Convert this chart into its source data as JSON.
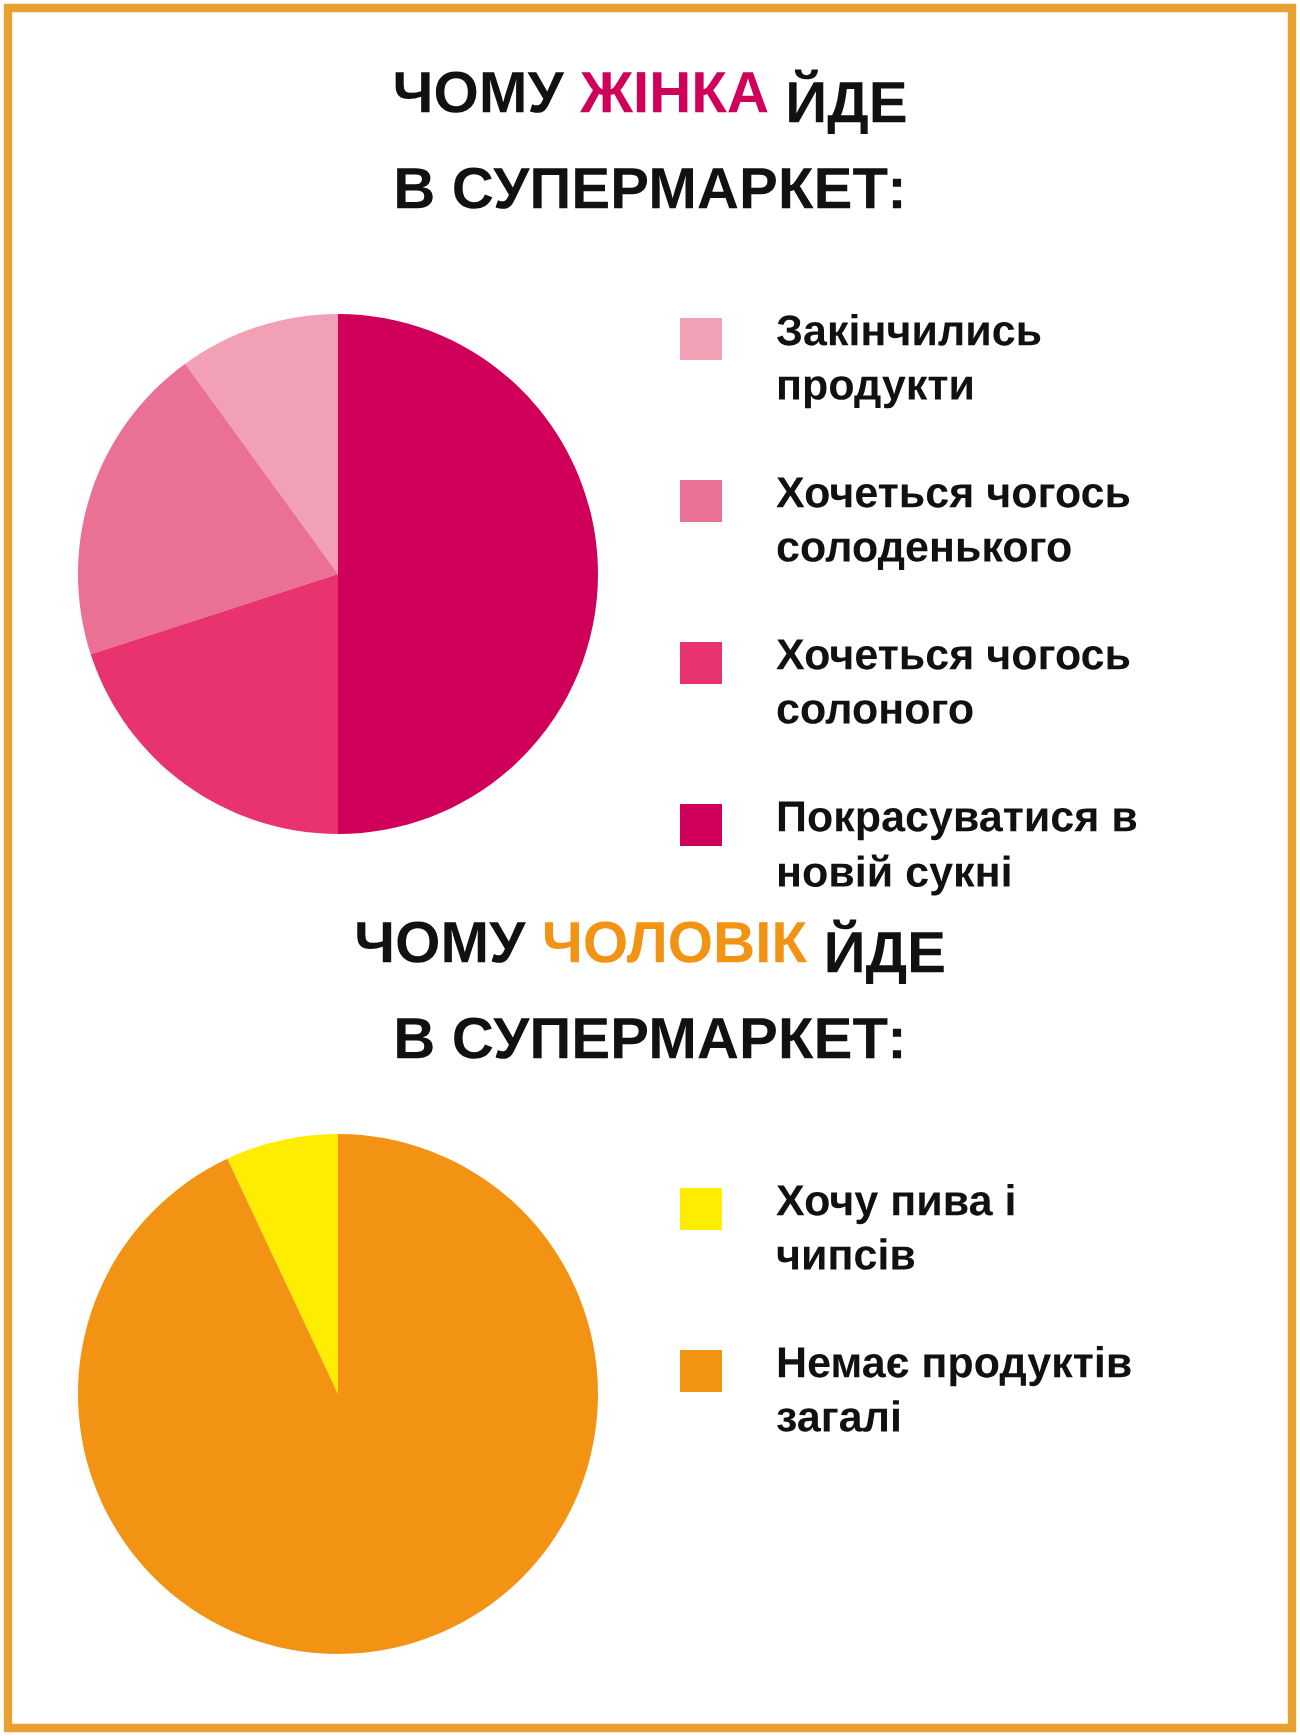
{
  "chart_data": [
    {
      "type": "pie",
      "title": "ЧОМУ ЖІНКА ЙДЕ\nВ СУПЕРМАРКЕТ:",
      "categories": [
        "Закінчились\nпродукти",
        "Хочеться чогось\nсолоденького",
        "Хочеться чогось\nсолоного",
        "Покрасуватися в\nновій сукні"
      ],
      "values": [
        10,
        20,
        20,
        50
      ],
      "colors": [
        "#f2a0b5",
        "#ea7095",
        "#e8336f",
        "#d0005a"
      ],
      "legend": "right"
    },
    {
      "type": "pie",
      "title": "ЧОМУ ЧОЛОВІК ЙДЕ\nВ СУПЕРМАРКЕТ:",
      "categories": [
        "Хочу пива і\nчипсів",
        "Немає продуктів\nзагалі"
      ],
      "values": [
        7,
        93
      ],
      "colors": [
        "#ffed00",
        "#f39314"
      ],
      "legend": "right"
    }
  ]
}
